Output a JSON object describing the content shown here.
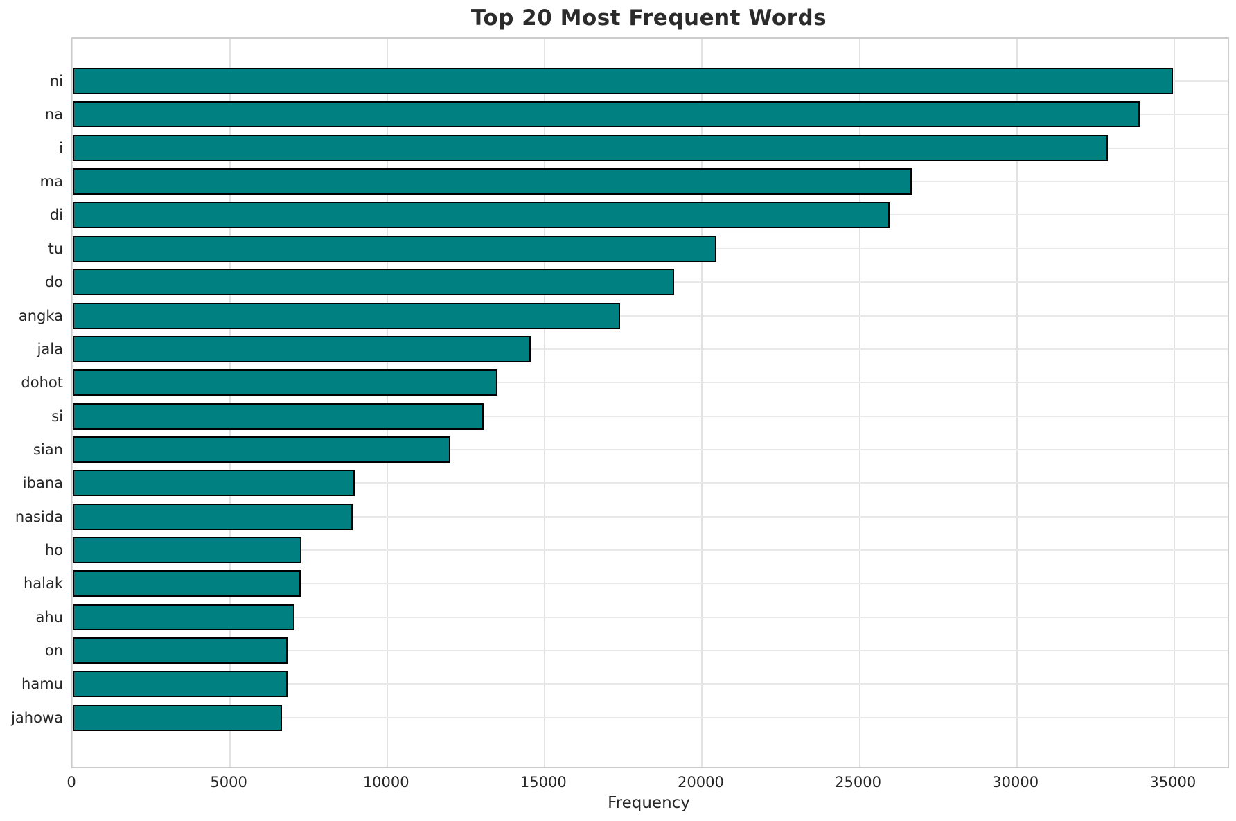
{
  "title": "Top 20 Most Frequent Words",
  "x_axis_label": "Frequency",
  "colors": {
    "bar_fill": "#008080",
    "bar_edge": "#000000",
    "grid": "#e2e2e2",
    "spine": "#cccccc",
    "text": "#262626",
    "title_text": "#2b2b2b",
    "background": "#ffffff"
  },
  "chart_data": {
    "type": "bar",
    "orientation": "horizontal",
    "title": "Top 20 Most Frequent Words",
    "xlabel": "Frequency",
    "ylabel": "",
    "grid": true,
    "legend": false,
    "xlim": [
      0,
      36700
    ],
    "xticks": [
      0,
      5000,
      10000,
      15000,
      20000,
      25000,
      30000,
      35000
    ],
    "categories": [
      "ni",
      "na",
      "i",
      "ma",
      "di",
      "tu",
      "do",
      "angka",
      "jala",
      "dohot",
      "si",
      "sian",
      "ibana",
      "nasida",
      "ho",
      "halak",
      "ahu",
      "on",
      "hamu",
      "jahowa"
    ],
    "values": [
      34950,
      33900,
      32900,
      26650,
      25950,
      20450,
      19100,
      17400,
      14550,
      13500,
      13050,
      12000,
      8950,
      8890,
      7270,
      7250,
      7050,
      6830,
      6830,
      6650
    ]
  }
}
